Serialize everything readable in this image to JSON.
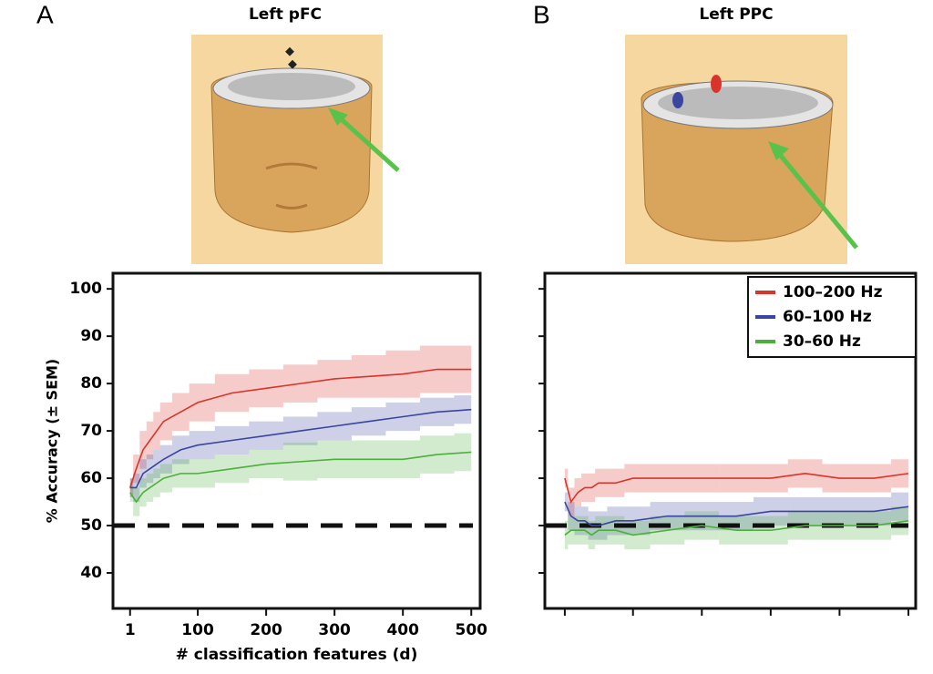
{
  "chart_data": [
    {
      "type": "line",
      "panel": "A",
      "title": "Left pFC",
      "xlabel": "# classification features (d)",
      "ylabel": "% Accuracy (± SEM)",
      "x": [
        1,
        10,
        20,
        30,
        40,
        50,
        75,
        100,
        150,
        200,
        250,
        300,
        350,
        400,
        450,
        500
      ],
      "xlim": [
        -24,
        513
      ],
      "xticks": [
        1,
        100,
        200,
        300,
        400,
        500
      ],
      "ylim": [
        32.5,
        103.3
      ],
      "yticks": [
        40,
        50,
        60,
        70,
        80,
        90,
        100
      ],
      "reference_line": 50,
      "series": [
        {
          "color": "#d9342b",
          "values": [
            58,
            62,
            66,
            68,
            70,
            72,
            74,
            76,
            78,
            79,
            80,
            81,
            81.5,
            82,
            83,
            83
          ],
          "error": [
            2,
            3,
            4,
            4,
            4,
            4,
            4,
            4,
            4,
            4,
            4,
            4,
            4.5,
            5,
            5,
            5
          ]
        },
        {
          "color": "#3a45a0",
          "values": [
            58,
            58,
            61,
            62,
            63,
            64,
            66,
            67,
            68,
            69,
            70,
            71,
            72,
            73,
            74,
            74.5
          ],
          "error": [
            2,
            3,
            3,
            3,
            3,
            3,
            3,
            3,
            3,
            3,
            3,
            3,
            3,
            3,
            3,
            3
          ]
        },
        {
          "color": "#4caf3c",
          "values": [
            57,
            55,
            57,
            58,
            59,
            60,
            61,
            61,
            62,
            63,
            63.5,
            64,
            64,
            64,
            65,
            65.5
          ],
          "error": [
            2,
            3,
            3,
            3,
            3,
            3,
            3,
            3,
            3,
            3,
            4,
            4,
            4,
            4,
            4,
            4
          ]
        }
      ]
    },
    {
      "type": "line",
      "panel": "B",
      "title": "Left PPC",
      "legend": "upper right",
      "x": [
        1,
        10,
        20,
        30,
        40,
        50,
        75,
        100,
        150,
        200,
        250,
        300,
        350,
        400,
        450,
        500
      ],
      "xlim": [
        -28,
        510.6
      ],
      "xticks": [
        {
          "value": 1,
          "label": null
        },
        {
          "value": 100,
          "label": null
        },
        {
          "value": 200,
          "label": null
        },
        {
          "value": 300,
          "label": null
        },
        {
          "value": 400,
          "label": null
        },
        {
          "value": 500,
          "label": null
        }
      ],
      "ylim": [
        32.5,
        103.3
      ],
      "yticks": [
        {
          "value": 40,
          "label": null
        },
        {
          "value": 50,
          "label": null
        },
        {
          "value": 60,
          "label": null
        },
        {
          "value": 70,
          "label": null
        },
        {
          "value": 80,
          "label": null
        },
        {
          "value": 90,
          "label": null
        },
        {
          "value": 100,
          "label": null
        }
      ],
      "reference_line": 50,
      "series": [
        {
          "name": "100–200 Hz",
          "color": "#d9342b",
          "values": [
            60,
            55,
            57,
            58,
            58,
            59,
            59,
            60,
            60,
            60,
            60,
            60,
            61,
            60,
            60,
            61
          ],
          "error": [
            2,
            3,
            3,
            3,
            3,
            3,
            3,
            3,
            3,
            3,
            3,
            3,
            3,
            3,
            3,
            3
          ]
        },
        {
          "name": "60–100 Hz",
          "color": "#3a45a0",
          "values": [
            55,
            52,
            51,
            51,
            50,
            50,
            51,
            51,
            52,
            52,
            52,
            53,
            53,
            53,
            53,
            54
          ],
          "error": [
            2,
            3,
            3,
            3,
            3,
            3,
            3,
            3,
            3,
            3,
            3,
            3,
            3,
            3,
            3,
            3
          ]
        },
        {
          "name": "30–60 Hz",
          "color": "#4caf3c",
          "values": [
            48,
            49,
            49,
            49,
            48,
            49,
            49,
            48,
            49,
            50,
            49,
            49,
            50,
            50,
            50,
            51
          ],
          "error": [
            3,
            3,
            3,
            3,
            3,
            3,
            3,
            3,
            3,
            3,
            3,
            3,
            3,
            3,
            3,
            3
          ]
        }
      ]
    }
  ]
}
